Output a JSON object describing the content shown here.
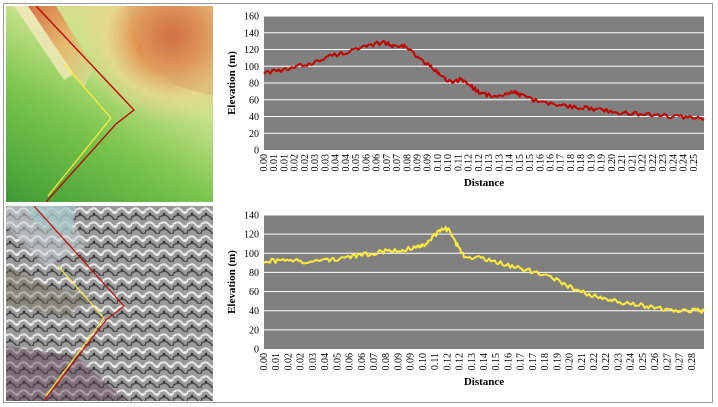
{
  "colors": {
    "top_series": "#c00000",
    "bottom_series": "#ffeb3b",
    "plot_background": "#808080",
    "grid": "#ffffff"
  },
  "maps": {
    "top": {
      "kind": "elevation-model",
      "lines": [
        "red",
        "yellow"
      ]
    },
    "bottom": {
      "kind": "satellite-image",
      "lines": [
        "red",
        "yellow"
      ]
    }
  },
  "chart_data": [
    {
      "type": "line",
      "xlabel": "Distance",
      "ylabel": "Elevation (m)",
      "ylim": [
        0,
        160
      ],
      "yticks": [
        0,
        20,
        40,
        60,
        80,
        100,
        120,
        140,
        160
      ],
      "xticks": [
        "0.00",
        "0.01",
        "0.01",
        "0.02",
        "0.02",
        "0.03",
        "0.03",
        "0.04",
        "0.04",
        "0.05",
        "0.06",
        "0.06",
        "0.07",
        "0.07",
        "0.08",
        "0.09",
        "0.09",
        "0.10",
        "0.10",
        "0.11",
        "0.12",
        "0.12",
        "0.13",
        "0.13",
        "0.14",
        "0.15",
        "0.15",
        "0.16",
        "0.16",
        "0.17",
        "0.18",
        "0.18",
        "0.19",
        "0.19",
        "0.20",
        "0.21",
        "0.21",
        "0.22",
        "0.22",
        "0.23",
        "0.24",
        "0.24",
        "0.25"
      ],
      "grid": true,
      "series": [
        {
          "color": "red",
          "x": [
            0.0,
            0.01,
            0.02,
            0.03,
            0.04,
            0.05,
            0.06,
            0.07,
            0.075,
            0.08,
            0.085,
            0.09,
            0.095,
            0.1,
            0.105,
            0.11,
            0.115,
            0.12,
            0.125,
            0.13,
            0.14,
            0.145,
            0.15,
            0.16,
            0.17,
            0.18,
            0.19,
            0.2,
            0.21,
            0.22,
            0.23,
            0.24,
            0.25,
            0.257
          ],
          "y": [
            93,
            94,
            100,
            105,
            113,
            118,
            123,
            129,
            124,
            126,
            120,
            110,
            103,
            95,
            86,
            80,
            85,
            78,
            70,
            66,
            64,
            70,
            65,
            58,
            54,
            52,
            50,
            47,
            44,
            43,
            42,
            40,
            38,
            37
          ]
        }
      ]
    },
    {
      "type": "line",
      "xlabel": "Distance",
      "ylabel": "Elevation (m)",
      "ylim": [
        0,
        140
      ],
      "yticks": [
        0,
        20,
        40,
        60,
        80,
        100,
        120,
        140
      ],
      "xticks": [
        "0.00",
        "0.01",
        "0.02",
        "0.02",
        "0.03",
        "0.04",
        "0.05",
        "0.06",
        "0.06",
        "0.07",
        "0.08",
        "0.09",
        "0.09",
        "0.10",
        "0.11",
        "0.12",
        "0.12",
        "0.13",
        "0.14",
        "0.15",
        "0.16",
        "0.17",
        "0.17",
        "0.18",
        "0.19",
        "0.20",
        "0.21",
        "0.22",
        "0.22",
        "0.23",
        "0.24",
        "0.25",
        "0.26",
        "0.27",
        "0.27",
        "0.28"
      ],
      "grid": true,
      "series": [
        {
          "color": "yellow",
          "x": [
            0.0,
            0.01,
            0.02,
            0.03,
            0.04,
            0.05,
            0.06,
            0.07,
            0.08,
            0.09,
            0.1,
            0.105,
            0.11,
            0.115,
            0.12,
            0.125,
            0.13,
            0.14,
            0.15,
            0.16,
            0.17,
            0.18,
            0.19,
            0.2,
            0.21,
            0.22,
            0.23,
            0.24,
            0.25,
            0.26,
            0.27,
            0.28,
            0.286
          ],
          "y": [
            92,
            92,
            92,
            91,
            93,
            95,
            97,
            100,
            103,
            104,
            106,
            110,
            118,
            124,
            126,
            110,
            98,
            95,
            92,
            87,
            83,
            78,
            72,
            64,
            58,
            54,
            50,
            47,
            44,
            42,
            40,
            41,
            39
          ]
        }
      ]
    }
  ]
}
